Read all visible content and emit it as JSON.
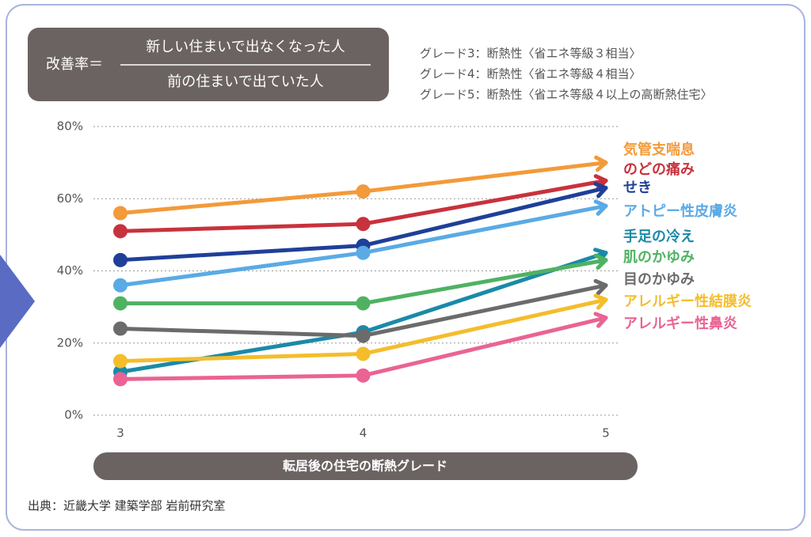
{
  "chart_data": {
    "type": "line",
    "formula": {
      "label": "改善率＝",
      "numerator": "新しい住まいで出なくなった人",
      "denominator": "前の住まいで出ていた人"
    },
    "notes": [
      "グレード3：断熱性〈省エネ等級３相当〉",
      "グレード4：断熱性〈省エネ等級４相当〉",
      "グレード5：断熱性〈省エネ等級４以上の高断熱住宅〉"
    ],
    "categories": [
      "3",
      "4",
      "5"
    ],
    "xlabel": "転居後の住宅の断熱グレード",
    "ylim": [
      0,
      80
    ],
    "yticks": [
      {
        "value": 0,
        "label": "0%"
      },
      {
        "value": 20,
        "label": "20%"
      },
      {
        "value": 40,
        "label": "40%"
      },
      {
        "value": 60,
        "label": "60%"
      },
      {
        "value": 80,
        "label": "80%"
      }
    ],
    "grid": true,
    "series": [
      {
        "name": "気管支喘息",
        "color": "#f39a3a",
        "values": [
          56,
          62,
          70
        ]
      },
      {
        "name": "のどの痛み",
        "color": "#c8323c",
        "values": [
          51,
          53,
          65
        ]
      },
      {
        "name": "せき",
        "color": "#1f3f99",
        "values": [
          43,
          47,
          63
        ]
      },
      {
        "name": "アトピー性皮膚炎",
        "color": "#5aaae6",
        "values": [
          36,
          45,
          58
        ]
      },
      {
        "name": "手足の冷え",
        "color": "#1a8aa8",
        "values": [
          12,
          23,
          45
        ]
      },
      {
        "name": "肌のかゆみ",
        "color": "#4fb262",
        "values": [
          31,
          31,
          43
        ]
      },
      {
        "name": "目のかゆみ",
        "color": "#6b6b6b",
        "values": [
          24,
          22,
          36
        ]
      },
      {
        "name": "アレルギー性結膜炎",
        "color": "#f5bd2c",
        "values": [
          15,
          17,
          32
        ]
      },
      {
        "name": "アレルギー性鼻炎",
        "color": "#ea6394",
        "values": [
          10,
          11,
          27
        ]
      }
    ],
    "source": "出典：近畿大学 建築学部 岩前研究室"
  }
}
